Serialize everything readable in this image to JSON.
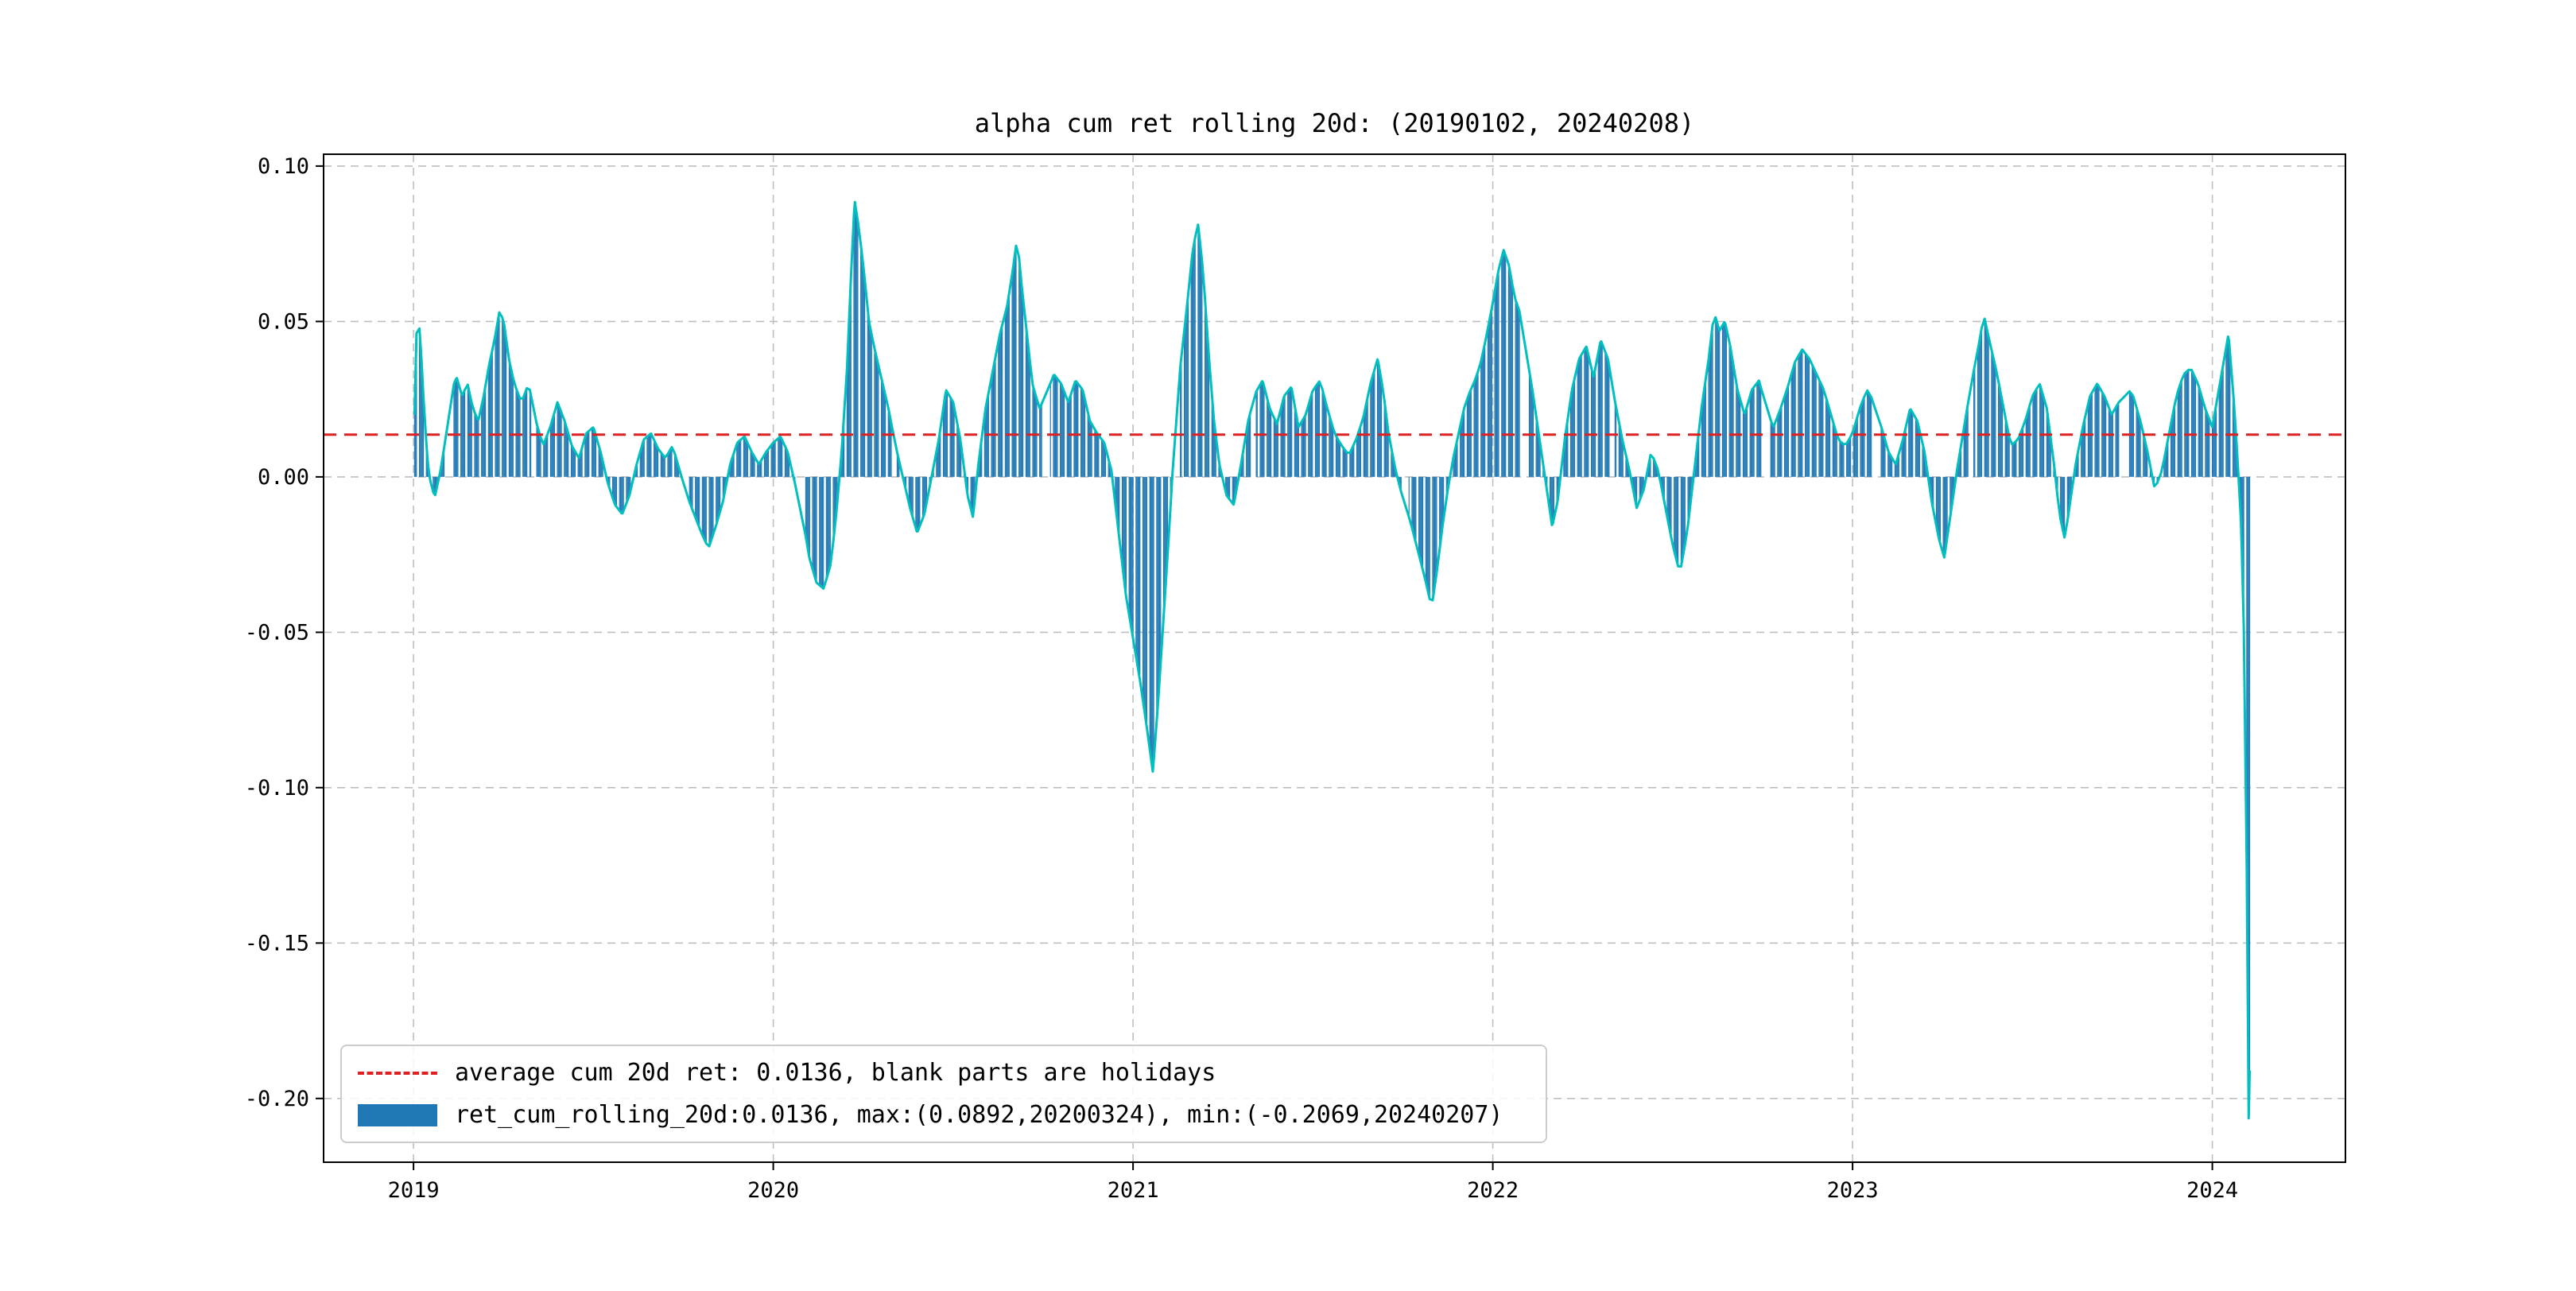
{
  "chart_data": {
    "type": "bar",
    "title": "alpha cum ret rolling 20d: (20190102, 20240208)",
    "xlabel": "",
    "ylabel": "",
    "x_ticks": [
      2019,
      2020,
      2021,
      2022,
      2023,
      2024
    ],
    "x_tick_labels": [
      "2019",
      "2020",
      "2021",
      "2022",
      "2023",
      "2024"
    ],
    "y_ticks": [
      0.1,
      0.05,
      0.0,
      -0.05,
      -0.1,
      -0.15,
      -0.2
    ],
    "y_tick_labels": [
      "0.10",
      "0.05",
      "0.00",
      "-0.05",
      "-0.10",
      "-0.15",
      "-0.20"
    ],
    "xlim": [
      2018.75,
      2024.37
    ],
    "ylim": [
      -0.2205,
      0.1038
    ],
    "grid": {
      "on": true,
      "color": "#bfbfbf",
      "style": "dashed"
    },
    "average_line": {
      "value": 0.0136,
      "color": "#e02020",
      "style": "dashed"
    },
    "legend": [
      {
        "label": "average cum 20d ret: 0.0136, blank parts are holidays",
        "marker": "dashed-line",
        "color": "#e02020"
      },
      {
        "label": "ret_cum_rolling_20d:0.0136, max:(0.0892,20200324), min:(-0.2069,20240207)",
        "marker": "filled-rect",
        "color": "#1f77b4"
      }
    ],
    "series": {
      "name": "ret_cum_rolling_20d",
      "bar_color": "#1f77b4",
      "line_color": "#00bfbf",
      "mean": 0.0136,
      "max": {
        "value": 0.0892,
        "date": "20200324"
      },
      "min": {
        "value": -0.2069,
        "date": "20240207"
      },
      "date_range": [
        "20190102",
        "20240208"
      ],
      "x": [
        2019.003,
        2019.008,
        2019.014,
        2019.022,
        2019.03,
        2019.04,
        2019.05,
        2019.06,
        2019.075,
        2019.09,
        2019.105,
        2019.12,
        2019.135,
        2019.15,
        2019.165,
        2019.18,
        2019.195,
        2019.21,
        2019.225,
        2019.24,
        2019.252,
        2019.265,
        2019.28,
        2019.3,
        2019.32,
        2019.34,
        2019.36,
        2019.38,
        2019.4,
        2019.42,
        2019.44,
        2019.46,
        2019.48,
        2019.5,
        2019.52,
        2019.54,
        2019.56,
        2019.58,
        2019.6,
        2019.62,
        2019.64,
        2019.66,
        2019.68,
        2019.7,
        2019.72,
        2019.74,
        2019.76,
        2019.78,
        2019.8,
        2019.82,
        2019.84,
        2019.86,
        2019.88,
        2019.9,
        2019.92,
        2019.94,
        2019.96,
        2019.98,
        2020.0,
        2020.02,
        2020.04,
        2020.06,
        2020.08,
        2020.1,
        2020.12,
        2020.14,
        2020.16,
        2020.175,
        2020.19,
        2020.205,
        2020.215,
        2020.226,
        2020.238,
        2020.252,
        2020.266,
        2020.28,
        2020.3,
        2020.32,
        2020.34,
        2020.36,
        2020.38,
        2020.4,
        2020.42,
        2020.44,
        2020.46,
        2020.48,
        2020.5,
        2020.52,
        2020.54,
        2020.555,
        2020.57,
        2020.59,
        2020.61,
        2020.63,
        2020.65,
        2020.665,
        2020.678,
        2020.69,
        2020.705,
        2020.72,
        2020.74,
        2020.76,
        2020.78,
        2020.8,
        2020.82,
        2020.84,
        2020.86,
        2020.88,
        2020.9,
        2020.92,
        2020.94,
        2020.96,
        2020.98,
        2021.0,
        2021.02,
        2021.04,
        2021.055,
        2021.07,
        2021.085,
        2021.1,
        2021.115,
        2021.13,
        2021.15,
        2021.165,
        2021.18,
        2021.195,
        2021.21,
        2021.225,
        2021.24,
        2021.26,
        2021.28,
        2021.3,
        2021.32,
        2021.34,
        2021.36,
        2021.38,
        2021.4,
        2021.42,
        2021.44,
        2021.46,
        2021.48,
        2021.5,
        2021.52,
        2021.54,
        2021.56,
        2021.58,
        2021.6,
        2021.62,
        2021.64,
        2021.66,
        2021.68,
        2021.695,
        2021.71,
        2021.73,
        2021.75,
        2021.77,
        2021.79,
        2021.81,
        2021.83,
        2021.845,
        2021.86,
        2021.875,
        2021.89,
        2021.905,
        2021.92,
        2021.935,
        2021.95,
        2021.965,
        2021.98,
        2022.0,
        2022.015,
        2022.03,
        2022.045,
        2022.06,
        2022.075,
        2022.09,
        2022.11,
        2022.13,
        2022.15,
        2022.165,
        2022.18,
        2022.2,
        2022.22,
        2022.24,
        2022.26,
        2022.28,
        2022.3,
        2022.32,
        2022.34,
        2022.36,
        2022.38,
        2022.4,
        2022.42,
        2022.44,
        2022.46,
        2022.48,
        2022.5,
        2022.52,
        2022.54,
        2022.56,
        2022.58,
        2022.6,
        2022.615,
        2022.63,
        2022.645,
        2022.66,
        2022.68,
        2022.7,
        2022.72,
        2022.74,
        2022.76,
        2022.78,
        2022.8,
        2022.82,
        2022.84,
        2022.86,
        2022.88,
        2022.9,
        2022.92,
        2022.94,
        2022.96,
        2022.98,
        2023.0,
        2023.02,
        2023.04,
        2023.06,
        2023.08,
        2023.1,
        2023.12,
        2023.14,
        2023.16,
        2023.18,
        2023.2,
        2023.22,
        2023.24,
        2023.255,
        2023.27,
        2023.29,
        2023.31,
        2023.33,
        2023.35,
        2023.365,
        2023.38,
        2023.4,
        2023.42,
        2023.44,
        2023.46,
        2023.48,
        2023.5,
        2023.52,
        2023.54,
        2023.56,
        2023.575,
        2023.59,
        2023.605,
        2023.62,
        2023.64,
        2023.66,
        2023.68,
        2023.7,
        2023.72,
        2023.74,
        2023.76,
        2023.78,
        2023.8,
        2023.82,
        2023.84,
        2023.86,
        2023.88,
        2023.9,
        2023.92,
        2023.94,
        2023.96,
        2023.98,
        2024.0,
        2024.015,
        2024.03,
        2024.045,
        2024.06,
        2024.07,
        2024.08,
        2024.09,
        2024.096,
        2024.101,
        2024.104
      ],
      "y": [
        0.02,
        0.046,
        0.052,
        0.038,
        0.02,
        0.004,
        -0.004,
        -0.006,
        0.002,
        0.013,
        0.028,
        0.032,
        0.026,
        0.03,
        0.022,
        0.018,
        0.026,
        0.036,
        0.044,
        0.054,
        0.049,
        0.038,
        0.03,
        0.024,
        0.03,
        0.018,
        0.01,
        0.016,
        0.024,
        0.018,
        0.01,
        0.006,
        0.014,
        0.016,
        0.008,
        -0.002,
        -0.009,
        -0.012,
        -0.006,
        0.004,
        0.012,
        0.014,
        0.009,
        0.006,
        0.01,
        0.002,
        -0.006,
        -0.012,
        -0.018,
        -0.023,
        -0.016,
        -0.008,
        0.004,
        0.011,
        0.013,
        0.008,
        0.004,
        0.008,
        0.011,
        0.013,
        0.008,
        -0.002,
        -0.012,
        -0.026,
        -0.034,
        -0.036,
        -0.028,
        -0.012,
        0.008,
        0.035,
        0.062,
        0.089,
        0.08,
        0.066,
        0.05,
        0.042,
        0.032,
        0.022,
        0.01,
        0.0,
        -0.01,
        -0.018,
        -0.012,
        0.0,
        0.012,
        0.028,
        0.024,
        0.012,
        -0.006,
        -0.013,
        0.004,
        0.022,
        0.034,
        0.046,
        0.055,
        0.066,
        0.077,
        0.062,
        0.046,
        0.03,
        0.022,
        0.027,
        0.033,
        0.03,
        0.024,
        0.031,
        0.028,
        0.018,
        0.014,
        0.011,
        0.002,
        -0.018,
        -0.038,
        -0.052,
        -0.066,
        -0.082,
        -0.095,
        -0.072,
        -0.045,
        -0.018,
        0.012,
        0.034,
        0.055,
        0.072,
        0.082,
        0.066,
        0.04,
        0.018,
        0.004,
        -0.006,
        -0.009,
        0.004,
        0.018,
        0.027,
        0.031,
        0.022,
        0.017,
        0.026,
        0.029,
        0.016,
        0.02,
        0.028,
        0.031,
        0.022,
        0.014,
        0.01,
        0.007,
        0.012,
        0.019,
        0.03,
        0.038,
        0.028,
        0.014,
        0.002,
        -0.007,
        -0.014,
        -0.023,
        -0.032,
        -0.042,
        -0.03,
        -0.016,
        -0.004,
        0.006,
        0.014,
        0.022,
        0.027,
        0.031,
        0.036,
        0.044,
        0.056,
        0.066,
        0.073,
        0.068,
        0.058,
        0.053,
        0.042,
        0.028,
        0.012,
        -0.004,
        -0.016,
        -0.008,
        0.012,
        0.028,
        0.038,
        0.042,
        0.032,
        0.044,
        0.038,
        0.024,
        0.012,
        0.002,
        -0.01,
        -0.004,
        0.008,
        0.002,
        -0.01,
        -0.022,
        -0.031,
        -0.018,
        0.002,
        0.022,
        0.038,
        0.053,
        0.047,
        0.05,
        0.042,
        0.028,
        0.02,
        0.028,
        0.031,
        0.022,
        0.016,
        0.022,
        0.029,
        0.037,
        0.041,
        0.038,
        0.033,
        0.028,
        0.02,
        0.012,
        0.01,
        0.014,
        0.022,
        0.028,
        0.024,
        0.016,
        0.008,
        0.004,
        0.012,
        0.022,
        0.018,
        0.008,
        -0.008,
        -0.02,
        -0.026,
        -0.014,
        0.002,
        0.016,
        0.03,
        0.042,
        0.052,
        0.044,
        0.034,
        0.022,
        0.01,
        0.012,
        0.018,
        0.026,
        0.03,
        0.022,
        0.004,
        -0.012,
        -0.02,
        -0.008,
        0.004,
        0.016,
        0.026,
        0.03,
        0.026,
        0.02,
        0.024,
        0.029,
        0.026,
        0.018,
        0.008,
        -0.004,
        0.002,
        0.014,
        0.026,
        0.033,
        0.035,
        0.03,
        0.022,
        0.016,
        0.026,
        0.036,
        0.046,
        0.024,
        0.006,
        -0.015,
        -0.06,
        -0.13,
        -0.2069,
        -0.19
      ]
    },
    "holiday_gaps": [
      [
        "2019-02-04",
        "2019-02-10"
      ],
      [
        "2019-05-01",
        "2019-05-03"
      ],
      [
        "2019-10-01",
        "2019-10-07"
      ],
      [
        "2020-01-24",
        "2020-02-02"
      ],
      [
        "2020-05-01",
        "2020-05-05"
      ],
      [
        "2020-10-01",
        "2020-10-08"
      ],
      [
        "2021-02-11",
        "2021-02-17"
      ],
      [
        "2021-05-01",
        "2021-05-05"
      ],
      [
        "2021-10-01",
        "2021-10-07"
      ],
      [
        "2022-01-31",
        "2022-02-06"
      ],
      [
        "2022-05-02",
        "2022-05-04"
      ],
      [
        "2022-10-01",
        "2022-10-07"
      ],
      [
        "2023-01-21",
        "2023-01-27"
      ],
      [
        "2023-05-01",
        "2023-05-03"
      ],
      [
        "2023-09-29",
        "2023-10-06"
      ]
    ]
  }
}
